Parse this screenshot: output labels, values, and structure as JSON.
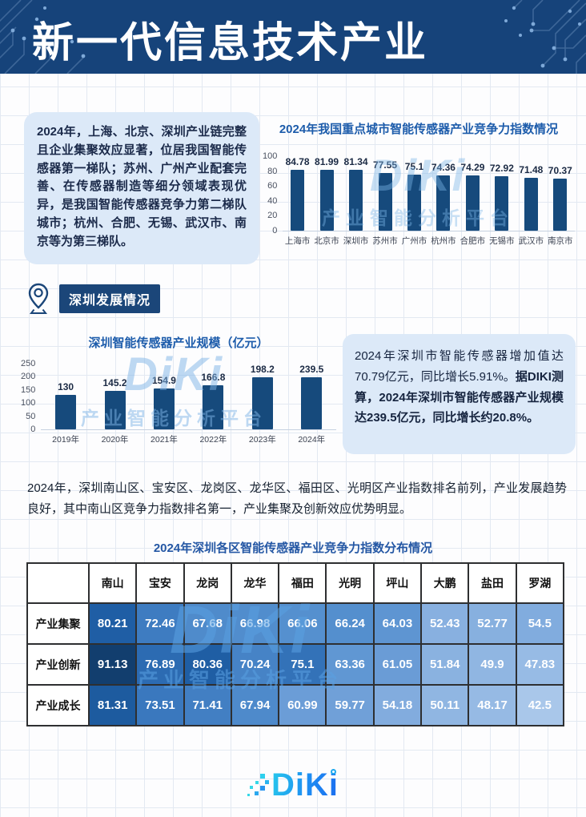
{
  "page": {
    "header_title": "新一代信息技术产业"
  },
  "intro_box": {
    "text": "2024年，上海、北京、深圳产业链完整且企业集聚效应显著，位居我国智能传感器第一梯队；苏州、广州产业配套完善、在传感器制造等细分领域表现优异，是我国智能传感器竞争力第二梯队城市；杭州、合肥、无锡、武汉市、南京等为第三梯队。"
  },
  "section": {
    "label": "深圳发展情况",
    "icon": "location-pin"
  },
  "highlight_box": {
    "text_normal": "2024年深圳市智能传感器增加值达70.79亿元，同比增长5.91%。",
    "text_bold": "据DIKI测算，2024年深圳市智能传感器产业规模达239.5亿元，同比增长约20.8%。"
  },
  "paragraph": "2024年，深圳南山区、宝安区、龙岗区、龙华区、福田区、光明区产业指数排名前列，产业发展趋势良好，其中南山区竞争力指数排名第一，产业集聚及创新效应优势明显。",
  "watermark": {
    "logo": "DiKi",
    "text": "产业智能分析平台"
  },
  "footer": {
    "logo_text": "DiKi"
  },
  "colors": {
    "header_bg": "#16437a",
    "accent_blue": "#1d5cab",
    "box_bg": "#dce9f8",
    "bar_blue": "#164a7c",
    "section_bg": "#1b4679",
    "logo_gradient_start": "#27c9ec",
    "logo_gradient_end": "#1b6cf0"
  },
  "chart_data": [
    {
      "type": "bar",
      "title": "2024年我国重点城市智能传感器产业竞争力指数情况",
      "categories": [
        "上海市",
        "北京市",
        "深圳市",
        "苏州市",
        "广州市",
        "杭州市",
        "合肥市",
        "无锡市",
        "武汉市",
        "南京市"
      ],
      "values": [
        84.78,
        81.99,
        81.34,
        77.55,
        75.1,
        74.36,
        74.29,
        72.92,
        71.48,
        70.37
      ],
      "xlabel": "",
      "ylabel": "",
      "ylim": [
        0,
        100
      ],
      "yticks": [
        0,
        20,
        40,
        60,
        80,
        100
      ],
      "grid": false,
      "legend": "none",
      "bar_color": "#164a7c"
    },
    {
      "type": "bar",
      "title": "深圳智能传感器产业规模（亿元）",
      "categories": [
        "2019年",
        "2020年",
        "2021年",
        "2022年",
        "2023年",
        "2024年"
      ],
      "values": [
        130,
        145.2,
        154.9,
        166.8,
        198.2,
        239.5
      ],
      "xlabel": "",
      "ylabel": "",
      "ylim": [
        0,
        250
      ],
      "yticks": [
        0,
        50,
        100,
        150,
        200,
        250
      ],
      "grid": false,
      "legend": "none",
      "bar_color": "#164a7c"
    },
    {
      "type": "heatmap",
      "title": "2024年深圳各区智能传感器产业竞争力指数分布情况",
      "columns": [
        "南山",
        "宝安",
        "龙岗",
        "龙华",
        "福田",
        "光明",
        "坪山",
        "大鹏",
        "盐田",
        "罗湖"
      ],
      "rows": [
        {
          "name": "产业集聚",
          "values": [
            80.21,
            72.46,
            67.68,
            66.98,
            66.06,
            66.24,
            64.03,
            52.43,
            52.77,
            54.5
          ]
        },
        {
          "name": "产业创新",
          "values": [
            91.13,
            76.89,
            80.36,
            70.24,
            75.1,
            63.36,
            61.05,
            51.84,
            49.9,
            47.83
          ]
        },
        {
          "name": "产业成长",
          "values": [
            81.31,
            73.51,
            71.41,
            67.94,
            60.99,
            59.77,
            54.18,
            50.11,
            48.17,
            42.5
          ]
        }
      ],
      "color_stops": [
        [
          42.5,
          "#a9c7ea"
        ],
        [
          60,
          "#6f9fd8"
        ],
        [
          66,
          "#5590cf"
        ],
        [
          73,
          "#3c7ac0"
        ],
        [
          80,
          "#1f5fa6"
        ],
        [
          91.13,
          "#123e6e"
        ]
      ]
    }
  ]
}
